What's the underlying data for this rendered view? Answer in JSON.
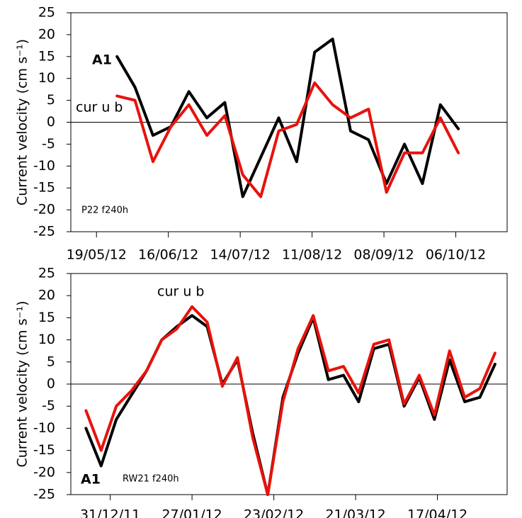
{
  "chart_data": [
    {
      "type": "line",
      "y_label": "Current velocity (cm s⁻¹)",
      "annotations": [
        "P22 f240h"
      ],
      "x": [
        "2012-05-27",
        "2012-06-03",
        "2012-06-10",
        "2012-06-17",
        "2012-06-24",
        "2012-07-01",
        "2012-07-08",
        "2012-07-15",
        "2012-07-22",
        "2012-07-29",
        "2012-08-05",
        "2012-08-12",
        "2012-08-19",
        "2012-08-26",
        "2012-09-02",
        "2012-09-09",
        "2012-09-16",
        "2012-09-23",
        "2012-09-30",
        "2012-10-07"
      ],
      "series": [
        {
          "name": "A1",
          "color": "#000000",
          "values": [
            15,
            8,
            -3,
            -1,
            7,
            1,
            4.5,
            -17,
            -8,
            1,
            -9,
            16,
            19,
            -2,
            -4,
            -14,
            -5,
            -14,
            4,
            -1.5
          ]
        },
        {
          "name": "cur u b",
          "color": "#e8120c",
          "values": [
            6,
            5,
            -9,
            -1,
            4,
            -3,
            1.5,
            -12,
            -17,
            -2,
            -0.5,
            9,
            4,
            1,
            3,
            -16,
            -7,
            -7,
            1,
            -7
          ]
        }
      ],
      "xlim": [
        "2012-05-09",
        "2012-10-26"
      ],
      "xticks": [
        {
          "value": "2012-05-19",
          "label": "19/05/12"
        },
        {
          "value": "2012-06-16",
          "label": "16/06/12"
        },
        {
          "value": "2012-07-14",
          "label": "14/07/12"
        },
        {
          "value": "2012-08-11",
          "label": "11/08/12"
        },
        {
          "value": "2012-09-08",
          "label": "08/09/12"
        },
        {
          "value": "2012-10-06",
          "label": "06/10/12"
        }
      ],
      "ylim": [
        -25,
        25
      ],
      "yticks": [
        -25,
        -20,
        -15,
        -10,
        -5,
        0,
        5,
        10,
        15,
        20,
        25
      ],
      "zero_line": true
    },
    {
      "type": "line",
      "y_label": "Current velocity (cm s⁻¹)",
      "annotations": [
        "RW21 f240h"
      ],
      "x": [
        "2011-12-23",
        "2011-12-28",
        "2012-01-02",
        "2012-01-07",
        "2012-01-12",
        "2012-01-17",
        "2012-01-22",
        "2012-01-27",
        "2012-02-01",
        "2012-02-06",
        "2012-02-11",
        "2012-02-16",
        "2012-02-21",
        "2012-02-26",
        "2012-03-02",
        "2012-03-07",
        "2012-03-12",
        "2012-03-17",
        "2012-03-22",
        "2012-03-27",
        "2012-04-01",
        "2012-04-06",
        "2012-04-11",
        "2012-04-16",
        "2012-04-21",
        "2012-04-26",
        "2012-05-01",
        "2012-05-06"
      ],
      "series": [
        {
          "name": "A1",
          "color": "#000000",
          "values": [
            -10,
            -18.5,
            -8,
            -2.5,
            3,
            10,
            13,
            15.5,
            13,
            0,
            5.5,
            -11,
            -25,
            -3,
            7,
            15,
            1,
            2,
            -4,
            8,
            9,
            -5,
            1.5,
            -8,
            5.5,
            -4,
            -3,
            4.5
          ]
        },
        {
          "name": "cur u b",
          "color": "#e8120c",
          "values": [
            -6,
            -15,
            -5,
            -1.5,
            3,
            10,
            12.5,
            17.5,
            14,
            -0.5,
            6,
            -12,
            -25,
            -4,
            8,
            15.5,
            3,
            4,
            -2,
            9,
            10,
            -4.5,
            2,
            -7,
            7.5,
            -3,
            -1,
            7
          ]
        }
      ],
      "xlim": [
        "2011-12-18",
        "2012-05-10"
      ],
      "xticks": [
        {
          "value": "2011-12-31",
          "label": "31/12/11"
        },
        {
          "value": "2012-01-27",
          "label": "27/01/12"
        },
        {
          "value": "2012-02-23",
          "label": "23/02/12"
        },
        {
          "value": "2012-03-21",
          "label": "21/03/12"
        },
        {
          "value": "2012-04-17",
          "label": "17/04/12"
        }
      ],
      "ylim": [
        -25,
        25
      ],
      "yticks": [
        -25,
        -20,
        -15,
        -10,
        -5,
        0,
        5,
        10,
        15,
        20,
        25
      ],
      "zero_line": true
    }
  ]
}
